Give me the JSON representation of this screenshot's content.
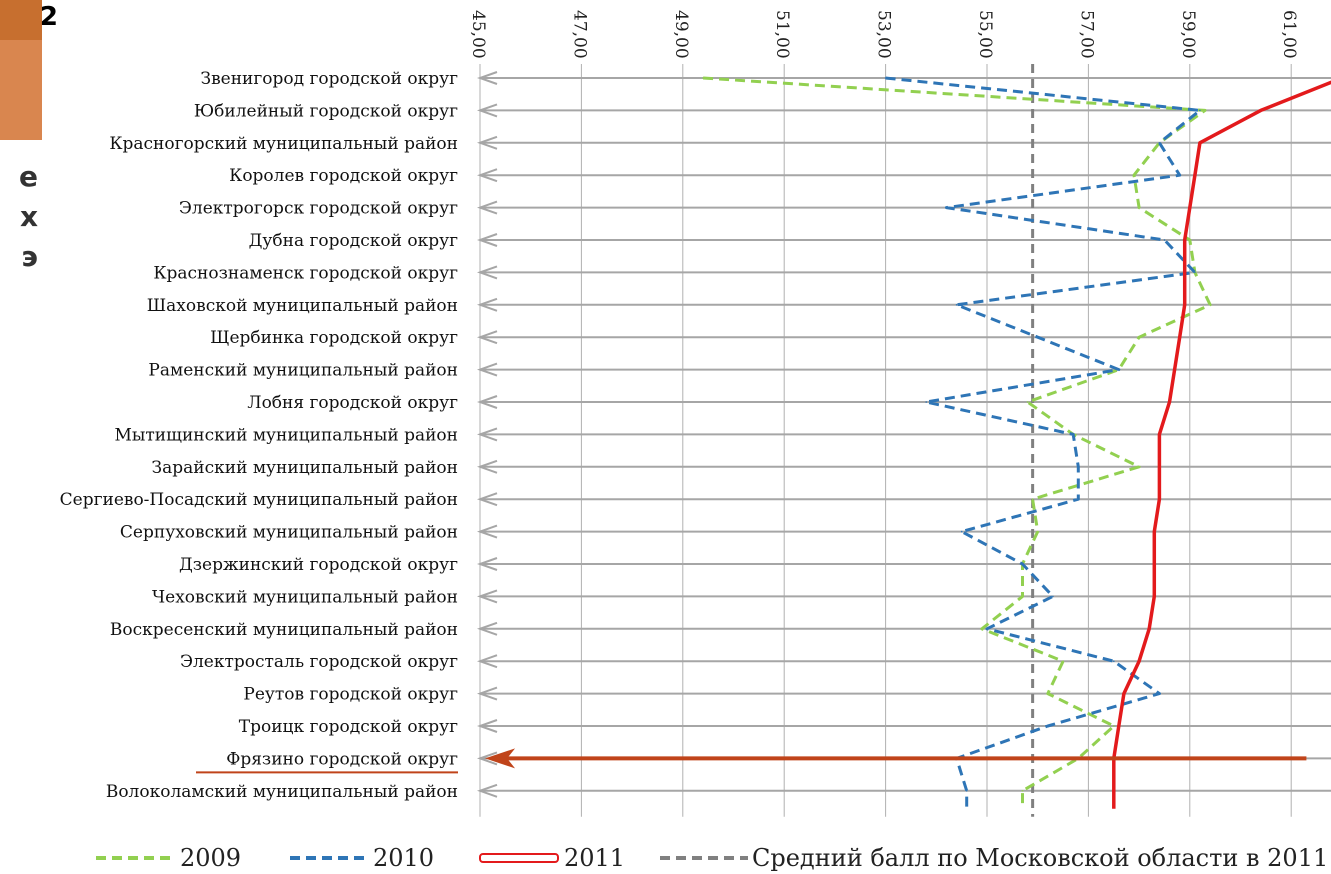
{
  "fragments": {
    "box_text": "2",
    "side_lines": [
      "е",
      "х",
      "э"
    ]
  },
  "chart_data": {
    "type": "line",
    "orientation": "horizontal",
    "value_axis": {
      "min": 45,
      "max": 61,
      "step": 2,
      "position": "top",
      "tick_labels": [
        "45,00",
        "47,00",
        "49,00",
        "51,00",
        "53,00",
        "55,00",
        "57,00",
        "59,00",
        "61,00"
      ]
    },
    "categories": [
      "Звенигород городской округ",
      "Юбилейный городской округ",
      "Красногорский муниципальный район",
      "Королев городской округ",
      "Электрогорск городской округ",
      "Дубна городской округ",
      "Краснознаменск городской округ",
      "Шаховской муниципальный район",
      "Щербинка городской округ",
      "Раменский муниципальный район",
      "Лобня городской округ",
      "Мытищинский муниципальный район",
      "Зарайский муниципальный район",
      "Сергиево-Посадский муниципальный район",
      "Серпуховский муниципальный район",
      "Дзержинский городской округ",
      "Чеховский муниципальный район",
      "Воскресенский муниципальный район",
      "Электросталь городской округ",
      "Реутов городской округ",
      "Троицк городской округ",
      "Фрязино городской округ",
      "Волоколамский муниципальный район"
    ],
    "highlight_category": "Фрязино городской округ",
    "series": [
      {
        "name": "2009",
        "color": "#92d050",
        "dash": "dashed",
        "values": [
          49.4,
          59.3,
          58.4,
          57.9,
          58.0,
          59.0,
          59.1,
          59.4,
          58.0,
          57.6,
          55.8,
          56.7,
          58.0,
          55.9,
          56.0,
          55.7,
          55.7,
          54.9,
          56.5,
          56.2,
          57.5,
          56.8,
          55.7
        ]
      },
      {
        "name": "2010",
        "color": "#2e75b6",
        "dash": "dashed",
        "values": [
          53.0,
          59.2,
          58.4,
          58.8,
          54.2,
          58.5,
          59.1,
          54.4,
          56.0,
          57.6,
          53.8,
          56.7,
          56.8,
          56.8,
          54.5,
          55.7,
          56.3,
          55.0,
          57.5,
          58.4,
          56.2,
          54.4,
          54.6
        ]
      },
      {
        "name": "2011",
        "color": "#e31a1c",
        "dash": "solid",
        "values": [
          62.0,
          60.4,
          59.2,
          59.1,
          59.0,
          58.9,
          58.9,
          58.9,
          58.8,
          58.7,
          58.6,
          58.4,
          58.4,
          58.4,
          58.3,
          58.3,
          58.3,
          58.2,
          58.0,
          57.7,
          57.6,
          57.5,
          57.5
        ]
      }
    ],
    "reference_line": {
      "name": "Средний балл по Московской области в 2011 г.",
      "value": 55.9,
      "color": "#808080"
    },
    "highlight_arrow": {
      "from": 61.3,
      "to": 45.1,
      "color": "#c0441a"
    },
    "legend": {
      "position": "bottom",
      "items": [
        "2009",
        "2010",
        "2011",
        "Средний балл по Московской области в 2011 г."
      ]
    }
  }
}
